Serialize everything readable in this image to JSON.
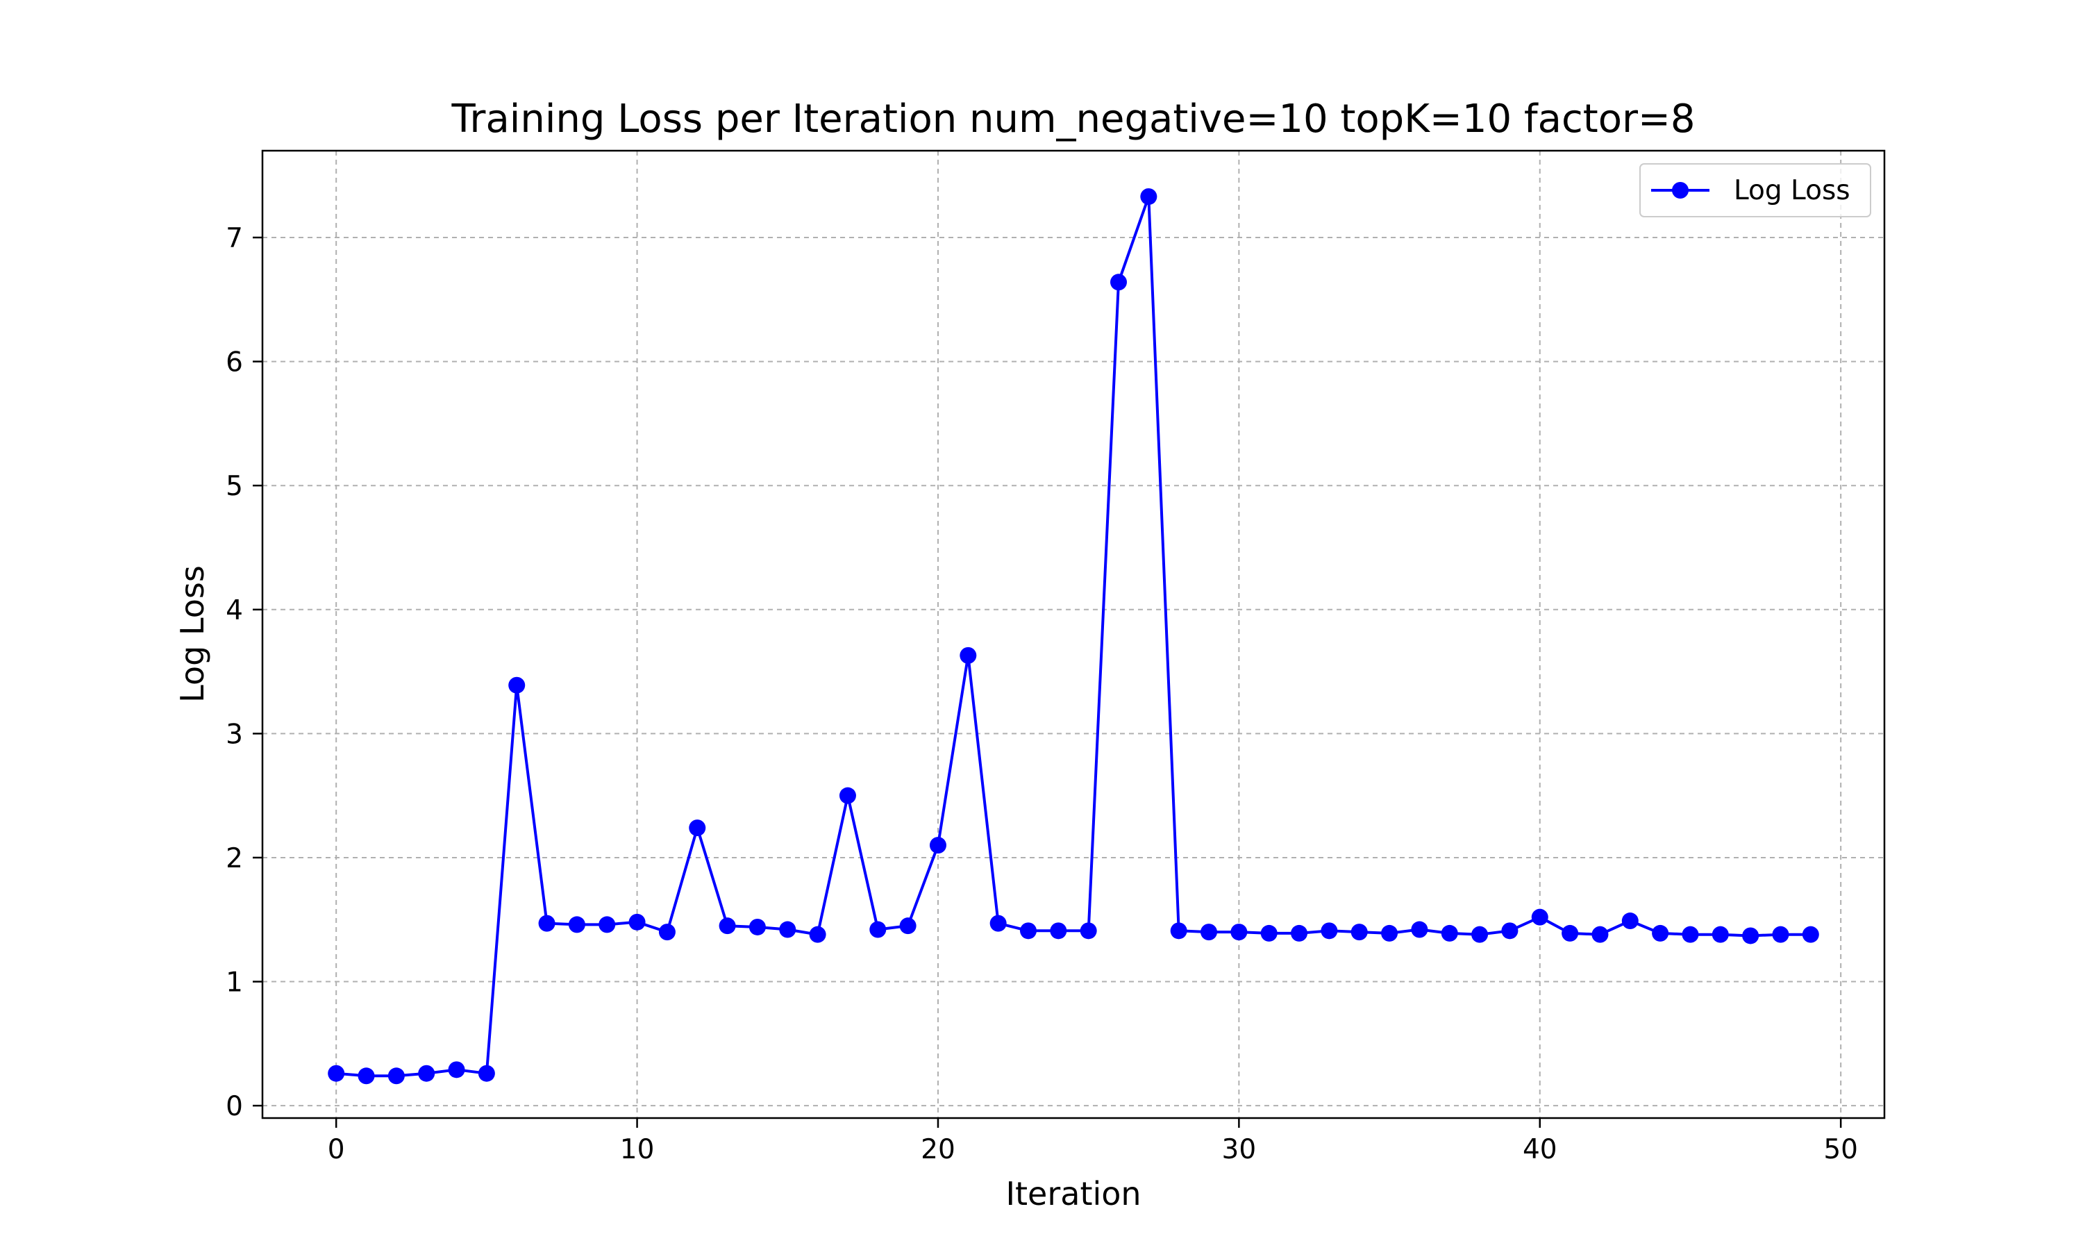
{
  "chart_data": {
    "type": "line",
    "title": "Training Loss per Iteration num_negative=10 topK=10 factor=8",
    "xlabel": "Iteration",
    "ylabel": "Log Loss",
    "xlim": [
      -2.45,
      51.45
    ],
    "ylim": [
      -0.1,
      7.7
    ],
    "xticks": [
      0,
      10,
      20,
      30,
      40,
      50
    ],
    "yticks": [
      0,
      1,
      2,
      3,
      4,
      5,
      6,
      7
    ],
    "grid": true,
    "legend_position": "top-right",
    "series": [
      {
        "name": "Log Loss",
        "color": "#0000ff",
        "marker": "circle",
        "x": [
          0,
          1,
          2,
          3,
          4,
          5,
          6,
          7,
          8,
          9,
          10,
          11,
          12,
          13,
          14,
          15,
          16,
          17,
          18,
          19,
          20,
          21,
          22,
          23,
          24,
          25,
          26,
          27,
          28,
          29,
          30,
          31,
          32,
          33,
          34,
          35,
          36,
          37,
          38,
          39,
          40,
          41,
          42,
          43,
          44,
          45,
          46,
          47,
          48,
          49
        ],
        "y": [
          0.26,
          0.24,
          0.24,
          0.26,
          0.29,
          0.26,
          3.39,
          1.47,
          1.46,
          1.46,
          1.48,
          1.4,
          2.24,
          1.45,
          1.44,
          1.42,
          1.38,
          2.5,
          1.42,
          1.45,
          2.1,
          3.63,
          1.47,
          1.41,
          1.41,
          1.41,
          6.64,
          7.33,
          1.41,
          1.4,
          1.4,
          1.39,
          1.39,
          1.41,
          1.4,
          1.39,
          1.42,
          1.39,
          1.38,
          1.41,
          1.52,
          1.39,
          1.38,
          1.49,
          1.39,
          1.38,
          1.38,
          1.37,
          1.38,
          1.38
        ]
      }
    ]
  }
}
